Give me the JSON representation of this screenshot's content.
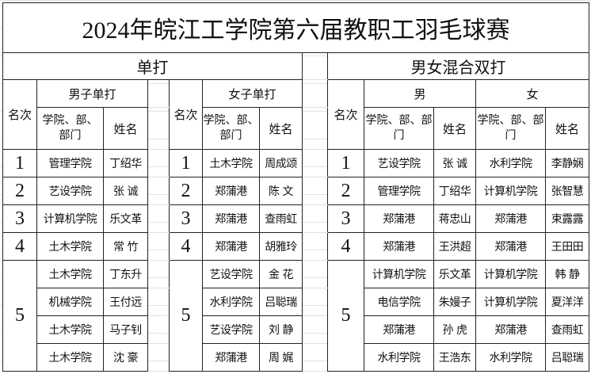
{
  "title": "2024年皖江工学院第六届教职工羽毛球赛",
  "singles": {
    "label": "单打",
    "rank_header": "名次",
    "dept_header": "学院、部、部门",
    "name_header": "姓名",
    "men": {
      "label": "男子单打",
      "rows": [
        {
          "rank": "1",
          "dept": "管理学院",
          "name": "丁绍华"
        },
        {
          "rank": "2",
          "dept": "艺设学院",
          "name": "张 诚"
        },
        {
          "rank": "3",
          "dept": "计算机学院",
          "name": "乐文革"
        },
        {
          "rank": "4",
          "dept": "土木学院",
          "name": "常 竹"
        },
        {
          "rank": "5",
          "dept": "土木学院",
          "name": "丁东升"
        },
        {
          "rank": "5",
          "dept": "机械学院",
          "name": "王付远"
        },
        {
          "rank": "5",
          "dept": "土木学院",
          "name": "马子钊"
        },
        {
          "rank": "5",
          "dept": "土木学院",
          "name": "沈 豪"
        }
      ]
    },
    "women": {
      "label": "女子单打",
      "rows": [
        {
          "rank": "1",
          "dept": "土木学院",
          "name": "周成颂"
        },
        {
          "rank": "2",
          "dept": "郑蒲港",
          "name": "陈 文"
        },
        {
          "rank": "3",
          "dept": "郑蒲港",
          "name": "查雨虹"
        },
        {
          "rank": "4",
          "dept": "郑蒲港",
          "name": "胡雅玲"
        },
        {
          "rank": "5",
          "dept": "艺设学院",
          "name": "金 花"
        },
        {
          "rank": "5",
          "dept": "水利学院",
          "name": "吕聪瑞"
        },
        {
          "rank": "5",
          "dept": "艺设学院",
          "name": "刘 静"
        },
        {
          "rank": "5",
          "dept": "郑蒲港",
          "name": "周 娓"
        }
      ]
    }
  },
  "mixed": {
    "label": "男女混合双打",
    "rank_header": "名次",
    "male_label": "男",
    "female_label": "女",
    "dept_header": "学院、部、部门",
    "name_header": "姓名",
    "rows": [
      {
        "rank": "1",
        "m_dept": "艺设学院",
        "m_name": "张 诚",
        "f_dept": "水利学院",
        "f_name": "李静娴"
      },
      {
        "rank": "2",
        "m_dept": "管理学院",
        "m_name": "丁绍华",
        "f_dept": "计算机学院",
        "f_name": "张智慧"
      },
      {
        "rank": "3",
        "m_dept": "郑蒲港",
        "m_name": "蒋忠山",
        "f_dept": "郑蒲港",
        "f_name": "束露露"
      },
      {
        "rank": "4",
        "m_dept": "郑蒲港",
        "m_name": "王洪超",
        "f_dept": "郑蒲港",
        "f_name": "王田田"
      },
      {
        "rank": "5",
        "m_dept": "计算机学院",
        "m_name": "乐文革",
        "f_dept": "计算机学院",
        "f_name": "韩 静"
      },
      {
        "rank": "5",
        "m_dept": "电信学院",
        "m_name": "朱嫚子",
        "f_dept": "计算机学院",
        "f_name": "夏洋洋"
      },
      {
        "rank": "5",
        "m_dept": "郑蒲港",
        "m_name": "孙 虎",
        "f_dept": "郑蒲港",
        "f_name": "查雨虹"
      },
      {
        "rank": "5",
        "m_dept": "水利学院",
        "m_name": "王浩东",
        "f_dept": "水利学院",
        "f_name": "吕聪瑞"
      }
    ]
  }
}
